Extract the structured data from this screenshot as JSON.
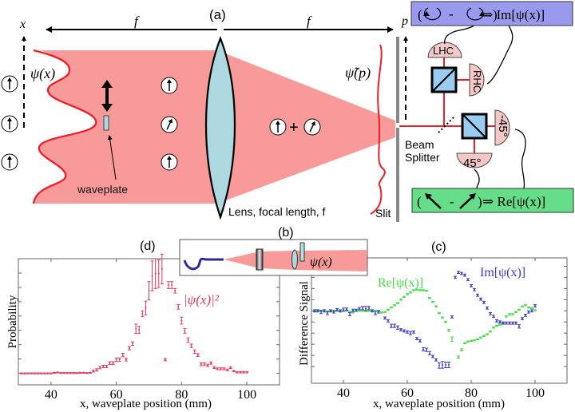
{
  "panels": {
    "a": {
      "label": "(a)",
      "focal_left": "f",
      "focal_right": "f",
      "x_axis_label": "x",
      "p_axis_label": "p",
      "psi_x": "ψ(x)",
      "psi_tilde_p": "ψ̃(p)",
      "waveplate_label": "waveplate",
      "lens_label": "Lens, focal length, f",
      "slit_label": "Slit",
      "beam_splitter_label_1": "Beam",
      "beam_splitter_label_2": "Splitter",
      "plus_sign": "+",
      "detectors": {
        "lhc": "LHC",
        "rhc": "RHC",
        "minus45": "-45°",
        "plus45": "45°"
      },
      "im_box": {
        "text": "⇒ Im[ψ(x)]",
        "minus": "-",
        "color": "#9999ee"
      },
      "re_box": {
        "text": "⇒ Re[ψ(x)]",
        "minus": "-",
        "color": "#66dd88"
      }
    },
    "b": {
      "label": "(b)",
      "psi_label": "ψ(x)"
    },
    "c": {
      "label": "(c)"
    },
    "d": {
      "label": "(d)"
    }
  },
  "colors": {
    "beam": "#f99a9a",
    "wavefunction": "#e8202a",
    "lens": "#add8e0",
    "re_series": "#44dd44",
    "im_series": "#3a3ac8",
    "prob_series": "#e03a5a",
    "detector": "#f5c8c8",
    "cube": "#99ccf0"
  },
  "chart_data": [
    {
      "id": "d",
      "type": "scatter",
      "title": "(d)",
      "xlabel": "x, waveplate position (mm)",
      "ylabel": "Probability",
      "xlim": [
        30,
        110
      ],
      "ylim": [
        -0.1,
        1.0
      ],
      "xticks": [
        40,
        60,
        80,
        100
      ],
      "yticks": [
        0,
        0.125,
        0.25,
        0.375,
        0.5,
        0.625,
        0.75,
        0.875
      ],
      "legend": "|ψ(x)|²",
      "series": [
        {
          "name": "|ψ(x)|²",
          "x": [
            31,
            32,
            33,
            34,
            35,
            36,
            37,
            38,
            39,
            40,
            41,
            42,
            43,
            44,
            45,
            46,
            47,
            48,
            49,
            50,
            51,
            52,
            53,
            54,
            55,
            56,
            57,
            58,
            59,
            60,
            61,
            62,
            63,
            64,
            65,
            66,
            67,
            68,
            69,
            70,
            71,
            72,
            73,
            74,
            75,
            76,
            77,
            78,
            79,
            80,
            81,
            82,
            83,
            84,
            85,
            86,
            87,
            88,
            89,
            90,
            91,
            92,
            93,
            94,
            95,
            96,
            97,
            98,
            99,
            100
          ],
          "y": [
            0,
            0,
            0,
            0,
            0,
            0,
            0,
            0,
            0,
            0,
            0.005,
            0.008,
            0.003,
            0.003,
            0.003,
            0.003,
            0.003,
            0.003,
            0.005,
            0.005,
            0.003,
            0.005,
            0.02,
            0.03,
            0.05,
            0.06,
            0.06,
            0.09,
            0.09,
            0.12,
            0.12,
            0.16,
            0.12,
            0.22,
            0.26,
            0.39,
            0.38,
            0.52,
            0.57,
            0.72,
            0.85,
            0.87,
            0.87,
            0.91,
            0.12,
            0.77,
            0.77,
            0.72,
            0.58,
            0.46,
            0.37,
            0.29,
            0.24,
            0.19,
            0.16,
            0.08,
            0.08,
            0.07,
            0.09,
            0.05,
            0.04,
            0.04,
            0.04,
            0.03,
            0.05,
            0.02,
            0.01,
            0.01,
            0.01,
            0.01
          ],
          "err": [
            0.004,
            0.004,
            0.004,
            0.004,
            0.004,
            0.004,
            0.004,
            0.004,
            0.004,
            0.004,
            0.004,
            0.004,
            0.004,
            0.004,
            0.004,
            0.004,
            0.004,
            0.004,
            0.004,
            0.004,
            0.004,
            0.004,
            0.008,
            0.01,
            0.01,
            0.01,
            0.01,
            0.012,
            0.012,
            0.015,
            0.015,
            0.015,
            0.012,
            0.015,
            0.015,
            0.04,
            0.03,
            0.025,
            0.06,
            0.08,
            0.13,
            0.13,
            0.12,
            0.13,
            0.01,
            0.03,
            0.03,
            0.02,
            0.02,
            0.03,
            0.02,
            0.02,
            0.015,
            0.015,
            0.012,
            0.012,
            0.012,
            0.01,
            0.01,
            0.008,
            0.008,
            0.008,
            0.008,
            0.008,
            0.008,
            0.006,
            0.006,
            0.006,
            0.006,
            0.006
          ]
        }
      ]
    },
    {
      "id": "c",
      "type": "scatter",
      "title": "(c)",
      "xlabel": "x, waveplate position (mm)",
      "ylabel": "Difference Signal",
      "xlim": [
        30,
        110
      ],
      "ylim": [
        -1.3,
        0.95
      ],
      "xticks": [
        40,
        60,
        80,
        100
      ],
      "yticks": [
        -1.0,
        -0.8,
        -0.6,
        -0.4,
        -0.2,
        0,
        0.2,
        0.4,
        0.6,
        0.8
      ],
      "series": [
        {
          "name": "Re[ψ(x)]",
          "color_key": "re_series",
          "x": [
            31,
            32,
            33,
            34,
            35,
            36,
            37,
            38,
            39,
            40,
            41,
            42,
            43,
            44,
            45,
            46,
            47,
            48,
            49,
            50,
            51,
            52,
            53,
            54,
            55,
            56,
            57,
            58,
            59,
            60,
            61,
            62,
            63,
            64,
            65,
            66,
            67,
            68,
            69,
            70,
            71,
            72,
            73,
            74,
            76,
            77,
            78,
            79,
            80,
            81,
            82,
            83,
            84,
            85,
            86,
            87,
            88,
            89,
            90,
            91,
            92,
            93,
            94,
            95,
            96,
            97,
            98,
            99,
            100
          ],
          "y": [
            0,
            0,
            0,
            -0.01,
            -0.01,
            0,
            0,
            0,
            -0.01,
            0,
            0,
            -0.02,
            -0.03,
            0,
            0,
            0,
            0,
            0,
            0,
            0,
            0,
            -0.03,
            -0.02,
            0.02,
            0.06,
            0.1,
            0.14,
            0.2,
            0.25,
            0.3,
            0.33,
            0.37,
            0.38,
            0.37,
            0.37,
            0.36,
            0.23,
            0.16,
            0.08,
            -0.04,
            -0.12,
            -0.2,
            -0.35,
            -0.51,
            -0.83,
            -0.7,
            -0.58,
            -0.55,
            -0.54,
            -0.53,
            -0.51,
            -0.48,
            -0.45,
            -0.42,
            -0.37,
            -0.3,
            -0.27,
            -0.25,
            -0.22,
            -0.1,
            -0.06,
            -0.06,
            -0.02,
            0.02,
            0.08,
            0.1,
            0.06,
            0.05,
            0.01
          ],
          "err": [
            0.01,
            0.01,
            0.01,
            0.01,
            0.01,
            0.01,
            0.01,
            0.01,
            0.01,
            0.01,
            0.01,
            0.01,
            0.01,
            0.01,
            0.01,
            0.01,
            0.01,
            0.01,
            0.01,
            0.01,
            0.01,
            0.01,
            0.01,
            0.01,
            0.01,
            0.01,
            0.01,
            0.01,
            0.01,
            0.01,
            0.01,
            0.01,
            0.01,
            0.01,
            0.01,
            0.01,
            0.01,
            0.01,
            0.01,
            0.01,
            0.01,
            0.01,
            0.02,
            0.04,
            0.02,
            0.02,
            0.01,
            0.01,
            0.01,
            0.01,
            0.01,
            0.01,
            0.01,
            0.01,
            0.01,
            0.01,
            0.01,
            0.01,
            0.01,
            0.01,
            0.01,
            0.01,
            0.01,
            0.01,
            0.01,
            0.01,
            0.01,
            0.01,
            0.01
          ]
        },
        {
          "name": "Im[ψ(x)]",
          "color_key": "im_series",
          "x": [
            31,
            32,
            33,
            34,
            35,
            36,
            37,
            38,
            39,
            40,
            41,
            42,
            43,
            44,
            45,
            46,
            47,
            48,
            49,
            50,
            51,
            53,
            54,
            55,
            56,
            57,
            58,
            59,
            60,
            61,
            62,
            63,
            64,
            65,
            66,
            67,
            68,
            69,
            70,
            71,
            72,
            73,
            74,
            75,
            76,
            77,
            78,
            79,
            80,
            81,
            82,
            83,
            84,
            85,
            86,
            87,
            88,
            89,
            90,
            91,
            92,
            93,
            94,
            95,
            96,
            97,
            98,
            99,
            100
          ],
          "y": [
            0,
            0,
            -0.02,
            0,
            -0.04,
            0,
            -0.02,
            0.02,
            0,
            0.02,
            0.03,
            -0.06,
            0.01,
            0.01,
            0.04,
            0.05,
            0.04,
            0.05,
            0,
            -0.04,
            -0.02,
            -0.13,
            -0.18,
            -0.27,
            -0.27,
            -0.3,
            -0.34,
            -0.36,
            -0.38,
            -0.4,
            -0.38,
            -0.5,
            -0.54,
            -0.69,
            -0.7,
            -0.76,
            -0.82,
            -0.88,
            -0.98,
            -0.97,
            -0.97,
            -0.97,
            -0.11,
            0.6,
            0.69,
            0.67,
            0.64,
            0.56,
            0.45,
            0.38,
            0.28,
            0.21,
            0.15,
            0.05,
            -0.05,
            -0.1,
            -0.18,
            -0.2,
            -0.22,
            -0.22,
            -0.22,
            -0.22,
            -0.22,
            -0.28,
            -0.14,
            -0.08,
            -0.02,
            0.0,
            0.09
          ],
          "err": [
            0.02,
            0.02,
            0.03,
            0.02,
            0.03,
            0.02,
            0.02,
            0.02,
            0.02,
            0.03,
            0.02,
            0.03,
            0.02,
            0.02,
            0.02,
            0.03,
            0.04,
            0.03,
            0.02,
            0.03,
            0.02,
            0.02,
            0.02,
            0.03,
            0.03,
            0.03,
            0.02,
            0.02,
            0.02,
            0.03,
            0.02,
            0.02,
            0.02,
            0.03,
            0.03,
            0.03,
            0.02,
            0.02,
            0.05,
            0.06,
            0.05,
            0.05,
            0.02,
            0.02,
            0.02,
            0.02,
            0.02,
            0.02,
            0.02,
            0.02,
            0.02,
            0.02,
            0.02,
            0.02,
            0.02,
            0.02,
            0.02,
            0.02,
            0.02,
            0.02,
            0.02,
            0.02,
            0.02,
            0.03,
            0.02,
            0.02,
            0.02,
            0.02,
            0.02
          ]
        }
      ],
      "annotations": [
        "Re[ψ(x)]",
        "Im[ψ(x)]"
      ]
    }
  ]
}
